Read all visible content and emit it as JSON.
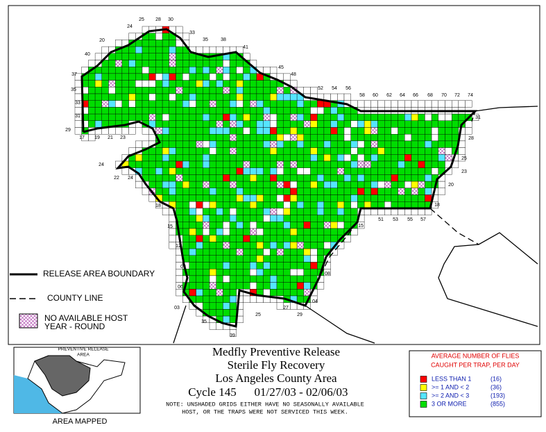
{
  "map": {
    "grid_labels": [
      "25",
      "28",
      "30",
      "33",
      "35",
      "38",
      "41",
      "45",
      "48",
      "20",
      "24",
      "40",
      "37",
      "35",
      "33",
      "31",
      "29",
      "17",
      "19",
      "21",
      "23",
      "24",
      "22",
      "24",
      "18",
      "15",
      "12",
      "09",
      "06",
      "03",
      "35",
      "39",
      "25",
      "27",
      "29",
      "04",
      "08",
      "15",
      "18",
      "51",
      "53",
      "55",
      "57",
      "52",
      "54",
      "56",
      "58",
      "60",
      "62",
      "64",
      "66",
      "68",
      "70",
      "72",
      "74",
      "31",
      "28",
      "25",
      "23",
      "20"
    ],
    "legend": {
      "boundary": "RELEASE AREA BOUNDARY",
      "county": "COUNTY LINE",
      "nohost_1": "NO AVAILABLE HOST",
      "nohost_2": "YEAR - ROUND"
    },
    "title": {
      "line1": "Medfly Preventive Release",
      "line2": "Sterile Fly Recovery",
      "line3": "Los Angeles County Area",
      "cycle": "Cycle 145",
      "dates": "01/27/03 - 02/06/03",
      "note_1": "NOTE: UNSHADED GRIDS EITHER HAVE NO SEASONALLY AVAILABLE",
      "note_2": "HOST, OR THE TRAPS WERE NOT SERVICED THIS WEEK."
    },
    "inset": {
      "label_1": "PREVENTIVE RELEASE",
      "label_2": "AREA",
      "caption": "AREA MAPPED"
    },
    "key": {
      "title_1": "AVERAGE NUMBER OF FLIES",
      "title_2": "CAUGHT PER TRAP, PER DAY",
      "items": [
        {
          "label": "LESS THAN 1",
          "count": "(16)",
          "color": "#ff0000"
        },
        {
          "label": ">= 1 AND < 2",
          "count": "(36)",
          "color": "#ffff00"
        },
        {
          "label": ">= 2 AND < 3",
          "count": "(193)",
          "color": "#55e5ff"
        },
        {
          "label": "3 OR MORE",
          "count": "(855)",
          "color": "#00dd00"
        }
      ]
    }
  }
}
